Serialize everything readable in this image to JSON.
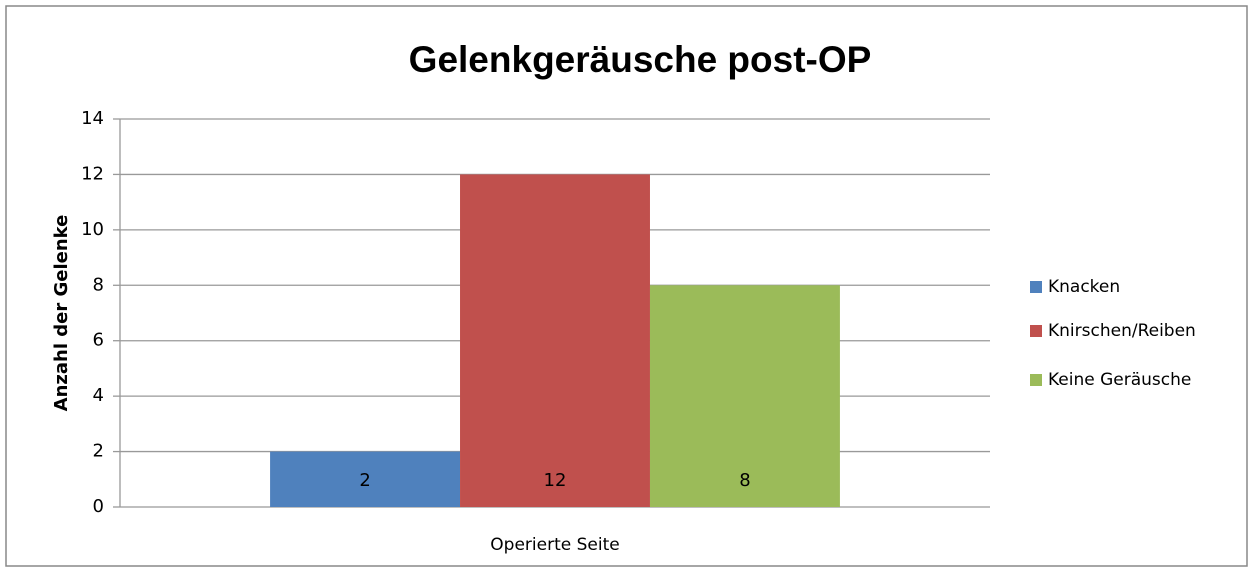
{
  "chart_data": {
    "type": "bar",
    "title": "Gelenkgeräusche post-OP",
    "y_label": "Anzahl der Gelenke",
    "categories": [
      "Operierte Seite"
    ],
    "series": [
      {
        "name": "Knacken",
        "color": "#4f81bd",
        "values": [
          2
        ]
      },
      {
        "name": "Knirschen/Reiben",
        "color": "#c0504d",
        "values": [
          12
        ]
      },
      {
        "name": "Keine Geräusche",
        "color": "#9bbb59",
        "values": [
          8
        ]
      }
    ],
    "ylim": [
      0,
      14
    ],
    "yticks": [
      0,
      2,
      4,
      6,
      8,
      10,
      12,
      14
    ],
    "grid": true,
    "legend": "right"
  }
}
